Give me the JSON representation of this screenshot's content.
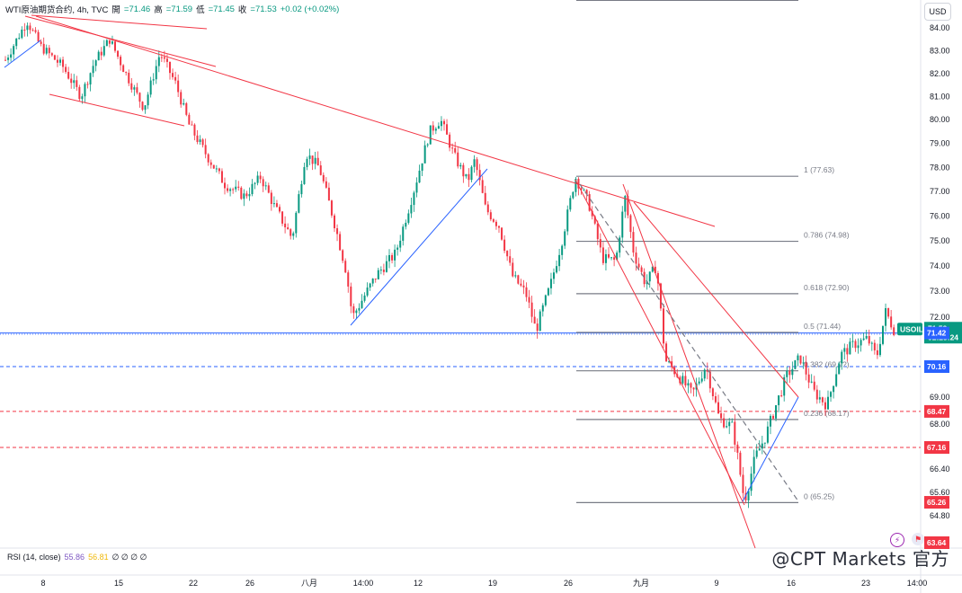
{
  "header": {
    "symbol": "WTI原油期货合约, 4h, TVC",
    "open_label": "開",
    "open": "=71.46",
    "high_label": "高",
    "high": "=71.59",
    "low_label": "低",
    "low": "=71.45",
    "close_label": "收",
    "close": "=71.53",
    "change": "+0.02 (+0.02%)"
  },
  "currency": "USD",
  "rsi": {
    "label": "RSI (14, close)",
    "v1": "55.86",
    "v2": "56.81",
    "extra": "∅ ∅ ∅ ∅"
  },
  "watermark": "@CPT Markets 官方",
  "chart_data": {
    "type": "candlestick",
    "y_ticks": [
      "84.00",
      "83.00",
      "82.00",
      "81.00",
      "80.00",
      "79.00",
      "78.00",
      "77.00",
      "76.00",
      "75.00",
      "74.00",
      "73.00",
      "72.00",
      "69.00",
      "68.00",
      "66.40",
      "65.60",
      "64.80"
    ],
    "x_ticks": [
      "8",
      "15",
      "22",
      "26",
      "八月",
      "14:00",
      "12",
      "19",
      "26",
      "九月",
      "9",
      "16",
      "23",
      "14:00"
    ],
    "fib_levels": [
      {
        "label": "1 (77.63)",
        "price": 77.63
      },
      {
        "label": "0.786 (74.98)",
        "price": 74.98
      },
      {
        "label": "0.618 (72.90)",
        "price": 72.9
      },
      {
        "label": "0.5 (71.44)",
        "price": 71.44
      },
      {
        "label": "0.382 (69.9?)",
        "price": 70.0
      },
      {
        "label": "0.236 (68.17)",
        "price": 68.17
      },
      {
        "label": "0 (65.25)",
        "price": 65.25
      }
    ],
    "price_badges": [
      {
        "symbol": "USOIL",
        "value": "71.53",
        "countdown": "02:23:24",
        "color": "#089981"
      },
      {
        "value": "71.42",
        "color": "#2962ff"
      },
      {
        "value": "70.16",
        "color": "#2962ff"
      },
      {
        "value": "68.47",
        "color": "#f23645"
      },
      {
        "value": "67.16",
        "color": "#f23645"
      },
      {
        "value": "65.26",
        "color": "#f23645"
      },
      {
        "value": "63.64",
        "color": "#f23645"
      }
    ],
    "horizontal_lines": [
      {
        "price": 71.42,
        "style": "solid",
        "color": "#2962ff"
      },
      {
        "price": 70.16,
        "style": "dashed",
        "color": "#2962ff"
      },
      {
        "price": 68.47,
        "style": "dashed",
        "color": "#f23645"
      },
      {
        "price": 67.16,
        "style": "dashed",
        "color": "#f23645"
      }
    ],
    "colors": {
      "up": "#089981",
      "down": "#f23645",
      "trendline_red": "#f23645",
      "trendline_blue": "#2962ff",
      "fib": "#787b86"
    }
  }
}
